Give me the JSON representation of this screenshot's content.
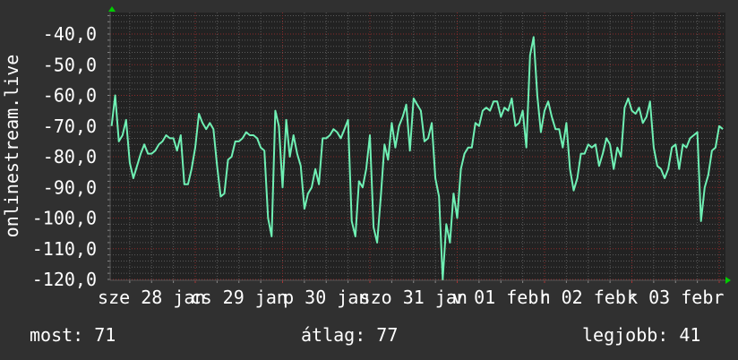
{
  "chart_data": {
    "type": "line",
    "title": "",
    "ylabel": "onlinestream.live",
    "xlabel": "",
    "ylim": [
      -120,
      -33
    ],
    "y_ticks": [
      "-40,0",
      "-50,0",
      "-60,0",
      "-70,0",
      "-80,0",
      "-90,0",
      "-100,0",
      "-110,0",
      "-120,0"
    ],
    "y_tick_values": [
      -40,
      -50,
      -60,
      -70,
      -80,
      -90,
      -100,
      -110,
      -120
    ],
    "x_ticks": [
      "sze 28 jan",
      "cs 29 jan",
      "p 30 jan",
      "szo 31 jan",
      "v 01 febr",
      "h 02 febr",
      "k 03 febr"
    ],
    "grid": true,
    "colors": {
      "line": "#6ff0b4",
      "major_grid": "#8a2a2a",
      "minor_grid": "#5a5a5a",
      "plot_bg": "#222222",
      "background": "#303030",
      "arrow": "#00cc00"
    },
    "series": [
      {
        "values": [
          -70,
          -60,
          -75,
          -73,
          -68,
          -82,
          -87,
          -83,
          -79,
          -76,
          -79,
          -79,
          -78,
          -76,
          -75,
          -73,
          -74,
          -74,
          -78,
          -73,
          -89,
          -89,
          -84,
          -77,
          -66,
          -69,
          -71,
          -69,
          -71,
          -83,
          -93,
          -92,
          -81,
          -80,
          -75,
          -75,
          -74,
          -72,
          -73,
          -73,
          -74,
          -77,
          -78,
          -100,
          -106,
          -65,
          -70,
          -90,
          -68,
          -80,
          -73,
          -79,
          -83,
          -97,
          -92,
          -90,
          -84,
          -89,
          -74,
          -74,
          -73,
          -71,
          -72,
          -74,
          -71,
          -68,
          -101,
          -106,
          -88,
          -90,
          -84,
          -73,
          -103,
          -108,
          -93,
          -76,
          -81,
          -69,
          -77,
          -70,
          -67,
          -63,
          -78,
          -61,
          -63,
          -65,
          -75,
          -74,
          -69,
          -87,
          -93,
          -120,
          -102,
          -108,
          -92,
          -100,
          -84,
          -79,
          -77,
          -77,
          -69,
          -70,
          -65,
          -64,
          -65,
          -62,
          -62,
          -67,
          -64,
          -65,
          -61,
          -70,
          -69,
          -65,
          -77,
          -47,
          -41,
          -60,
          -72,
          -65,
          -62,
          -67,
          -71,
          -71,
          -77,
          -69,
          -84,
          -91,
          -87,
          -79,
          -79,
          -76,
          -77,
          -76,
          -83,
          -79,
          -74,
          -76,
          -84,
          -77,
          -80,
          -64,
          -61,
          -65,
          -66,
          -64,
          -69,
          -67,
          -62,
          -77,
          -83,
          -84,
          -87,
          -84,
          -77,
          -76,
          -84,
          -76,
          -77,
          -74,
          -73,
          -72,
          -101,
          -90,
          -86,
          -78,
          -77,
          -70,
          -71
        ]
      }
    ]
  },
  "legend": {
    "current": "most: 71",
    "average": "átlag: 77",
    "max": "legjobb: 41"
  }
}
